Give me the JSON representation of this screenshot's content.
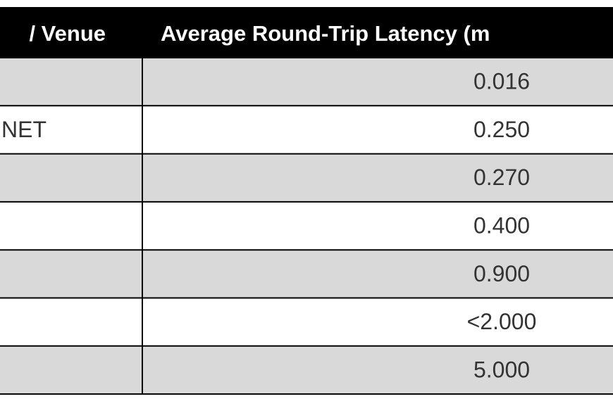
{
  "table": {
    "header": {
      "venue": "/ Venue",
      "latency": "Average Round-Trip Latency (m"
    },
    "rows": [
      {
        "latency": "0.016"
      },
      {
        "venue": "NET",
        "latency": "0.250"
      },
      {
        "latency": "0.270"
      },
      {
        "latency": "0.400"
      },
      {
        "latency": "0.900"
      },
      {
        "latency": "<2.000"
      },
      {
        "latency": "5.000"
      }
    ]
  }
}
